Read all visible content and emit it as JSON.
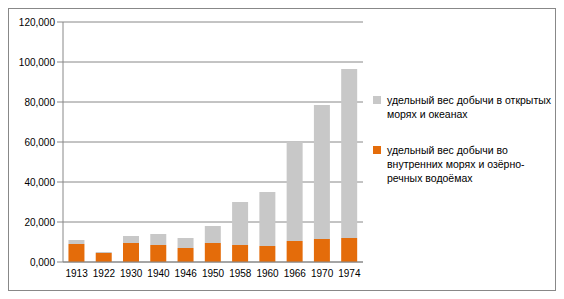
{
  "chart_data": {
    "type": "bar",
    "stacked": true,
    "grid": true,
    "legend": "right",
    "categories": [
      "1913",
      "1922",
      "1930",
      "1940",
      "1946",
      "1950",
      "1958",
      "1960",
      "1966",
      "1970",
      "1974"
    ],
    "series": [
      {
        "name": "удельный вес добычи во внутренних морях и озёрно-речных водоёмах",
        "color": "#e46c0a",
        "values": [
          9,
          4.5,
          9.5,
          8.5,
          7,
          9.5,
          8.5,
          8,
          10.5,
          11.5,
          12
        ]
      },
      {
        "name": "удельный вес добычи в открытых морях и океанах",
        "color": "#c8c8c8",
        "values": [
          2,
          0.5,
          3.5,
          5.5,
          5,
          8.5,
          21.5,
          27,
          49.5,
          67,
          84.5
        ]
      }
    ],
    "ylim": [
      0,
      120
    ],
    "yticks": [
      {
        "value": 0,
        "label": "0,000"
      },
      {
        "value": 20,
        "label": "20,000"
      },
      {
        "value": 40,
        "label": "40,000"
      },
      {
        "value": 60,
        "label": "60,000"
      },
      {
        "value": 80,
        "label": "80,000"
      },
      {
        "value": 100,
        "label": "100,000"
      },
      {
        "value": 120,
        "label": "120,000"
      }
    ]
  }
}
